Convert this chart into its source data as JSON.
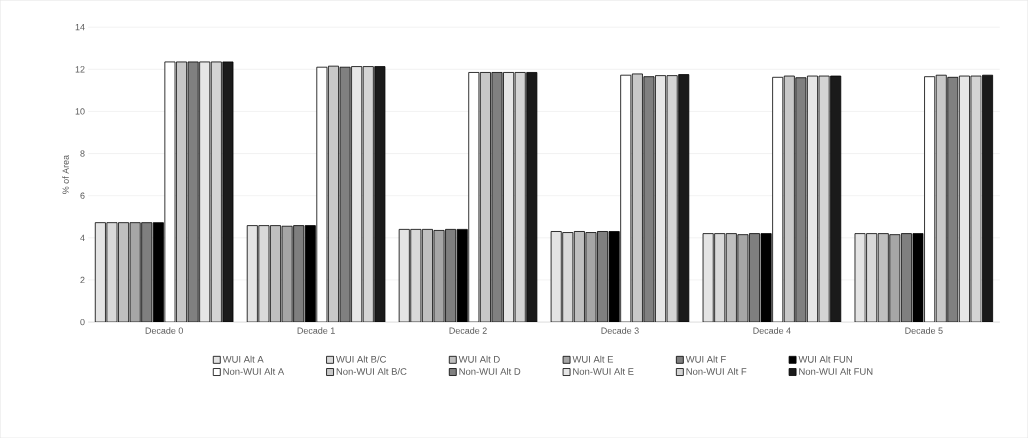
{
  "chart_data": {
    "type": "bar",
    "ylabel": "% of Area",
    "categories": [
      "Decade 0",
      "Decade 1",
      "Decade 2",
      "Decade 3",
      "Decade 4",
      "Decade 5"
    ],
    "series": [
      {
        "name": "WUI Alt A",
        "color": "#e4e4e4",
        "values": [
          4.72,
          4.58,
          4.4,
          4.3,
          4.2,
          4.2
        ]
      },
      {
        "name": "WUI Alt B/C",
        "color": "#d9d9d9",
        "values": [
          4.72,
          4.58,
          4.4,
          4.25,
          4.2,
          4.2
        ]
      },
      {
        "name": "WUI Alt D",
        "color": "#bfbfbf",
        "values": [
          4.72,
          4.58,
          4.4,
          4.3,
          4.2,
          4.2
        ]
      },
      {
        "name": "WUI Alt E",
        "color": "#a6a6a6",
        "values": [
          4.72,
          4.55,
          4.35,
          4.25,
          4.15,
          4.15
        ]
      },
      {
        "name": "WUI Alt F",
        "color": "#7f7f7f",
        "values": [
          4.72,
          4.58,
          4.4,
          4.3,
          4.2,
          4.2
        ]
      },
      {
        "name": "WUI Alt FUN",
        "color": "#000000",
        "values": [
          4.72,
          4.58,
          4.4,
          4.3,
          4.2,
          4.2
        ]
      },
      {
        "name": "Non-WUI Alt A",
        "color": "#ffffff",
        "values": [
          12.35,
          12.1,
          11.85,
          11.72,
          11.62,
          11.65
        ]
      },
      {
        "name": "Non-WUI Alt B/C",
        "color": "#c8c8c8",
        "values": [
          12.35,
          12.15,
          11.85,
          11.78,
          11.68,
          11.72
        ]
      },
      {
        "name": "Non-WUI Alt D",
        "color": "#808080",
        "values": [
          12.35,
          12.1,
          11.85,
          11.65,
          11.6,
          11.62
        ]
      },
      {
        "name": "Non-WUI Alt E",
        "color": "#e6e6e6",
        "values": [
          12.35,
          12.13,
          11.85,
          11.7,
          11.68,
          11.68
        ]
      },
      {
        "name": "Non-WUI Alt F",
        "color": "#d4d4d4",
        "values": [
          12.35,
          12.13,
          11.85,
          11.7,
          11.68,
          11.68
        ]
      },
      {
        "name": "Non-WUI Alt FUN",
        "color": "#1a1a1a",
        "values": [
          12.35,
          12.13,
          11.85,
          11.75,
          11.68,
          11.72
        ]
      }
    ],
    "ylim": [
      0,
      14
    ],
    "yticks": [
      0,
      2,
      4,
      6,
      8,
      10,
      12,
      14
    ],
    "grid": "y",
    "legend": "bottom"
  }
}
